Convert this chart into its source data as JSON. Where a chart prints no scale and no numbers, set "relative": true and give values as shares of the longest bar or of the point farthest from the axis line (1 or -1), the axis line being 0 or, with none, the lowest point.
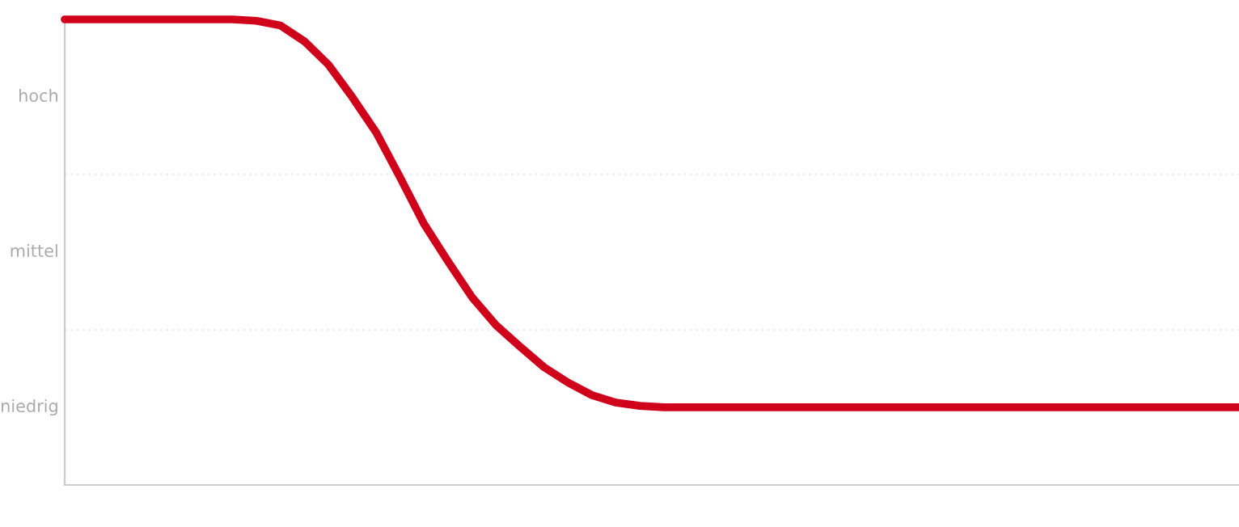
{
  "chart_data": {
    "type": "line",
    "relative": true,
    "categories": [
      null,
      null,
      null,
      null,
      null,
      null,
      null,
      null,
      null,
      null,
      null,
      null,
      null,
      null,
      null,
      null,
      null,
      null,
      null,
      null,
      null,
      null,
      null,
      null,
      null,
      null,
      null,
      null,
      null,
      null,
      null,
      null,
      null,
      null,
      null,
      null,
      null,
      null,
      null,
      null,
      null,
      null,
      null,
      null,
      null,
      null,
      null,
      null,
      null,
      null
    ],
    "series": [
      {
        "color": "#d0021b",
        "values": [
          1,
          1,
          1,
          1,
          1,
          1,
          1,
          1,
          0.997,
          0.987,
          0.953,
          0.903,
          0.833,
          0.757,
          0.66,
          0.56,
          0.48,
          0.403,
          0.343,
          0.297,
          0.253,
          0.22,
          0.193,
          0.177,
          0.17,
          0.167,
          0.167,
          0.167,
          0.167,
          0.167,
          0.167,
          0.167,
          0.167,
          0.167,
          0.167,
          0.167,
          0.167,
          0.167,
          0.167,
          0.167,
          0.167,
          0.167,
          0.167,
          0.167,
          0.167,
          0.167,
          0.167,
          0.167,
          0.167,
          0.167
        ]
      }
    ],
    "annotations": [
      "hoch",
      "mittel",
      "niedrig"
    ],
    "ref_lines": [
      {
        "axis": "y",
        "value": 0.333,
        "color": "#eeeeee",
        "line_style": "dotted"
      },
      {
        "axis": "y",
        "value": 0.667,
        "color": "#eeeeee",
        "line_style": "dotted"
      }
    ],
    "grid": false,
    "legend": false,
    "marker": "none",
    "line_style": "solid"
  }
}
